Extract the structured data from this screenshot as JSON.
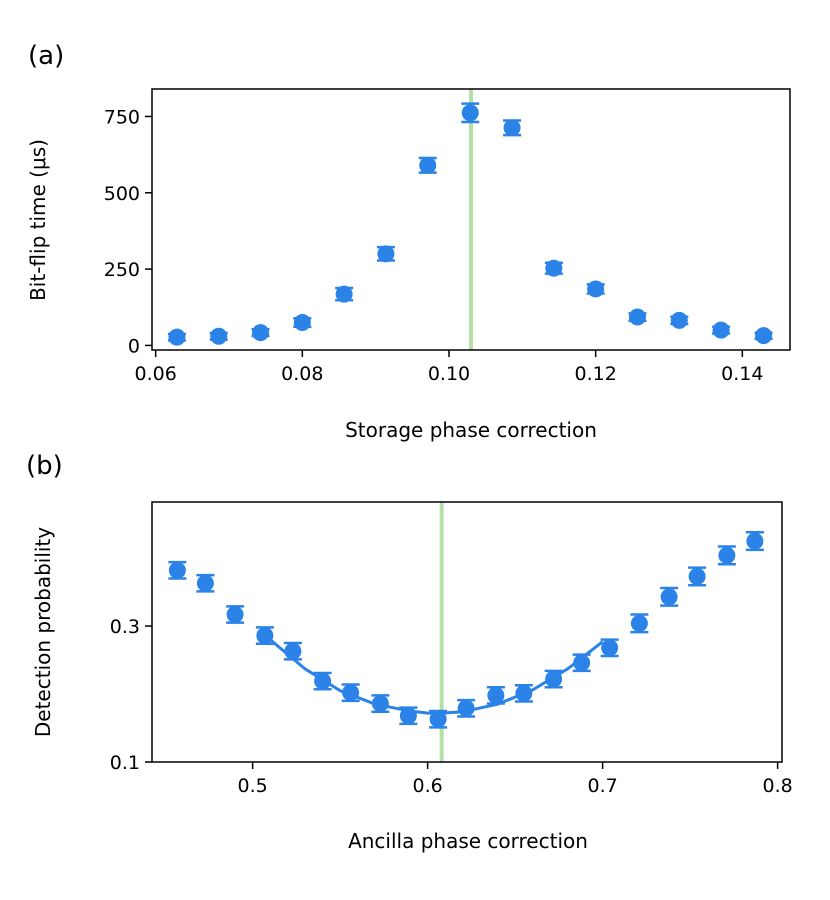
{
  "colors": {
    "marker": "#2b83e8",
    "highlight": "#b5e0a8",
    "axis": "#000000"
  },
  "chart_data": [
    {
      "type": "scatter",
      "panel_label": "(a)",
      "xlabel": "Storage phase correction",
      "ylabel": "Bit-flip time (μs)",
      "xlim": [
        0.0595,
        0.1465
      ],
      "ylim": [
        -15,
        840
      ],
      "xticks": [
        0.06,
        0.08,
        0.1,
        0.12,
        0.14
      ],
      "xtick_labels": [
        "0.06",
        "0.08",
        "0.10",
        "0.12",
        "0.14"
      ],
      "yticks": [
        0,
        250,
        500,
        750
      ],
      "ytick_labels": [
        "0",
        "250",
        "500",
        "750"
      ],
      "vline": 0.103,
      "series": [
        {
          "name": "data",
          "x": [
            0.0629,
            0.0686,
            0.0743,
            0.08,
            0.0857,
            0.0914,
            0.0971,
            0.1029,
            0.1086,
            0.1143,
            0.12,
            0.1257,
            0.1314,
            0.1371,
            0.1429
          ],
          "y": [
            27,
            30,
            42,
            75,
            168,
            300,
            590,
            762,
            713,
            253,
            185,
            93,
            82,
            50,
            32
          ],
          "err": [
            11,
            11,
            11,
            14,
            20,
            22,
            24,
            30,
            24,
            18,
            15,
            12,
            12,
            11,
            10
          ]
        }
      ]
    },
    {
      "type": "scatter",
      "panel_label": "(b)",
      "xlabel": "Ancilla phase correction",
      "ylabel": "Detection probability",
      "xlim": [
        0.4425,
        0.8025
      ],
      "ylim": [
        0.1,
        0.4825
      ],
      "xticks": [
        0.5,
        0.6,
        0.7,
        0.8
      ],
      "xtick_labels": [
        "0.5",
        "0.6",
        "0.7",
        "0.8"
      ],
      "yticks": [
        0.1,
        0.3
      ],
      "ytick_labels": [
        "0.1",
        "0.3"
      ],
      "vline": 0.608,
      "series": [
        {
          "name": "data",
          "x": [
            0.457,
            0.473,
            0.49,
            0.507,
            0.523,
            0.54,
            0.556,
            0.573,
            0.589,
            0.606,
            0.622,
            0.639,
            0.655,
            0.672,
            0.688,
            0.704,
            0.721,
            0.738,
            0.754,
            0.771,
            0.787
          ],
          "y": [
            0.382,
            0.363,
            0.317,
            0.286,
            0.263,
            0.219,
            0.202,
            0.186,
            0.168,
            0.163,
            0.179,
            0.198,
            0.201,
            0.222,
            0.246,
            0.268,
            0.304,
            0.343,
            0.373,
            0.404,
            0.425
          ],
          "err": [
            0.012,
            0.012,
            0.012,
            0.012,
            0.012,
            0.012,
            0.012,
            0.012,
            0.012,
            0.012,
            0.012,
            0.012,
            0.012,
            0.012,
            0.012,
            0.012,
            0.013,
            0.013,
            0.013,
            0.013,
            0.013
          ]
        },
        {
          "name": "fit",
          "x": [
            0.51,
            0.53,
            0.55,
            0.57,
            0.59,
            0.6,
            0.608,
            0.62,
            0.64,
            0.66,
            0.68,
            0.7
          ],
          "y": [
            0.28,
            0.237,
            0.205,
            0.185,
            0.175,
            0.172,
            0.172,
            0.174,
            0.185,
            0.206,
            0.237,
            0.277
          ]
        }
      ]
    }
  ]
}
